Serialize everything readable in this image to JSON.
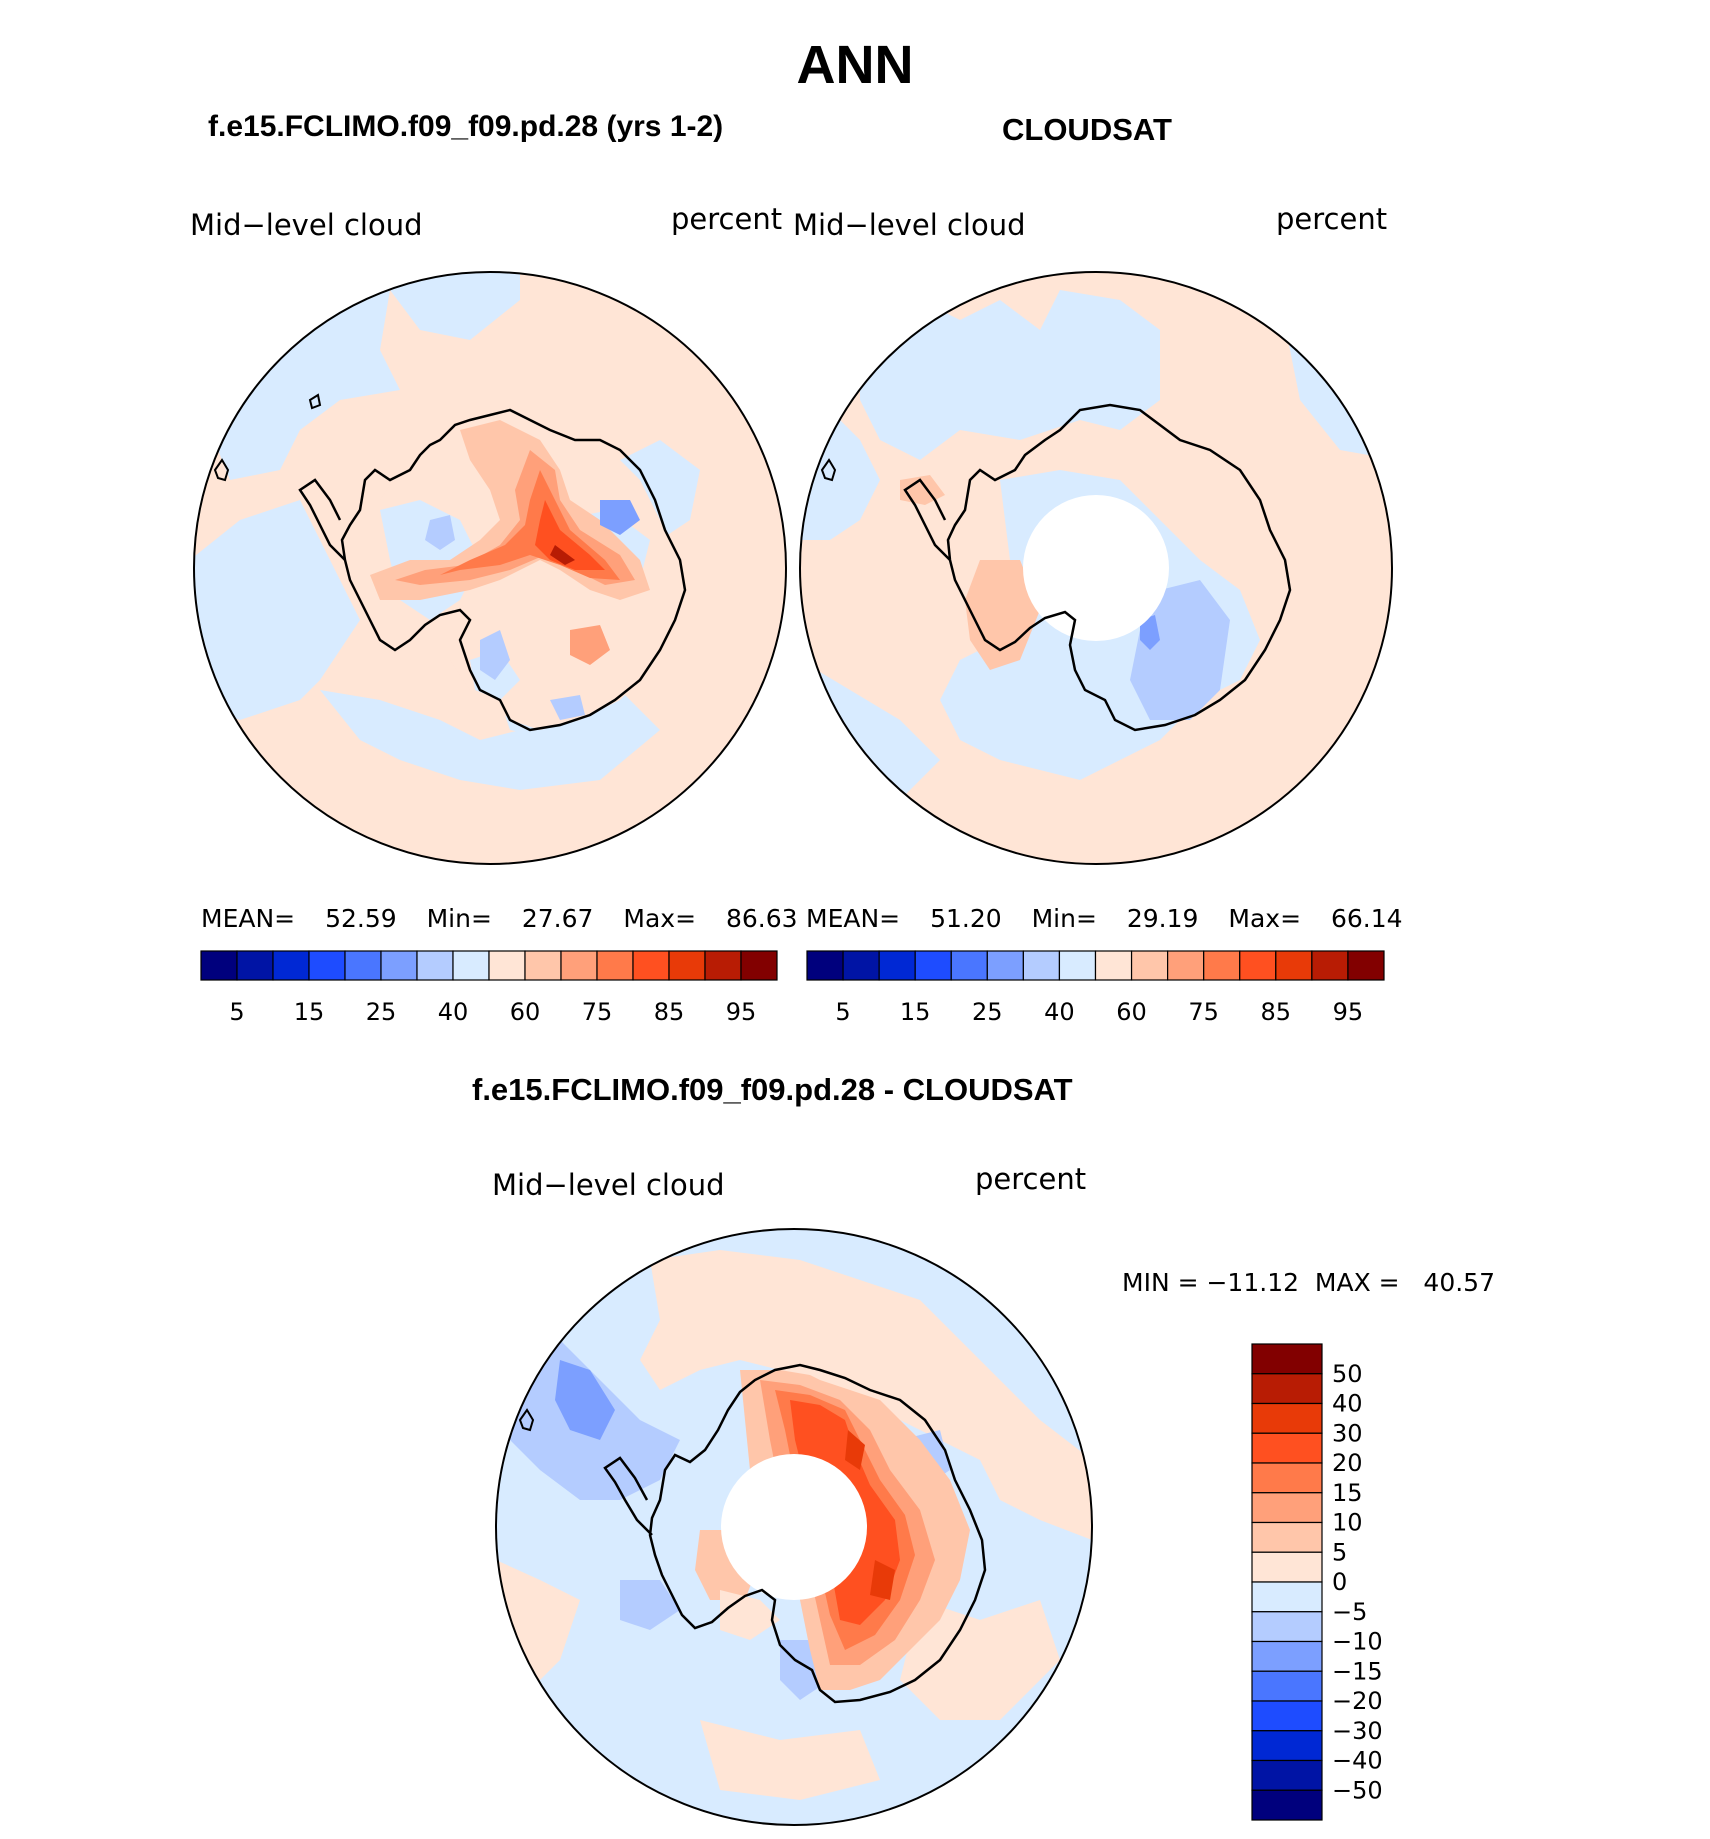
{
  "title": "ANN",
  "panels": [
    {
      "subtitle": "f.e15.FCLIMO.f09_f09.pd.28 (yrs 1-2)",
      "left_label": "Mid−level cloud",
      "right_label": "percent",
      "stats": {
        "mean_label": "MEAN=",
        "mean": "52.59",
        "min_label": "Min=",
        "min": "27.67",
        "max_label": "Max=",
        "max": "86.63"
      }
    },
    {
      "subtitle": "CLOUDSAT",
      "left_label": "Mid−level cloud",
      "right_label": "percent",
      "stats": {
        "mean_label": "MEAN=",
        "mean": "51.20",
        "min_label": "Min=",
        "min": "29.19",
        "max_label": "Max=",
        "max": "66.14"
      }
    }
  ],
  "colorbar_top": {
    "colors": [
      "#00007d",
      "#0014a5",
      "#0028d4",
      "#1e4cff",
      "#4a76ff",
      "#7c9fff",
      "#b4ccff",
      "#d8ebff",
      "#ffe5d6",
      "#ffc6aa",
      "#ffa07a",
      "#ff7a4a",
      "#ff5020",
      "#e83a08",
      "#b81c04",
      "#820000"
    ],
    "labels": [
      "5",
      "15",
      "25",
      "40",
      "60",
      "75",
      "85",
      "95"
    ]
  },
  "diff_panel": {
    "subtitle": "f.e15.FCLIMO.f09_f09.pd.28 - CLOUDSAT",
    "left_label": "Mid−level cloud",
    "right_label": "percent",
    "minmax": "MIN = −11.12  MAX =   40.57"
  },
  "colorbar_diff": {
    "colors_top_to_bottom": [
      "#820000",
      "#b81c04",
      "#e83a08",
      "#ff5020",
      "#ff7a4a",
      "#ffa07a",
      "#ffc6aa",
      "#ffe5d6",
      "#d8ebff",
      "#b4ccff",
      "#7c9fff",
      "#4a76ff",
      "#1e4cff",
      "#0028d4",
      "#0014a5",
      "#00007d"
    ],
    "labels": [
      "50",
      "40",
      "30",
      "20",
      "15",
      "10",
      "5",
      "0",
      "−5",
      "−10",
      "−15",
      "−20",
      "−30",
      "−40",
      "−50"
    ]
  }
}
